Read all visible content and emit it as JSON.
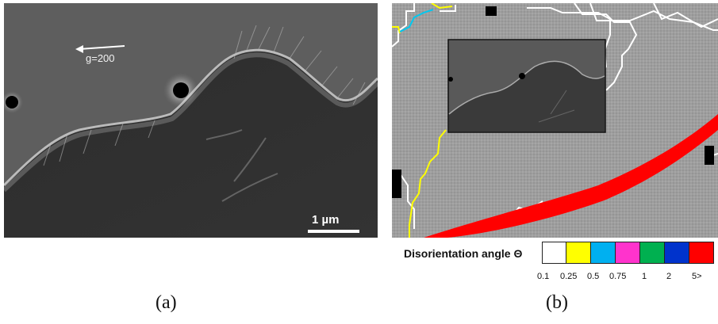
{
  "panel_a": {
    "g_vector_label": "g=200",
    "scale_bar_label": "1 µm"
  },
  "panel_b": {
    "legend_title": "Disorientation angle Θ",
    "legend_colors": [
      "#ffffff",
      "#ffff00",
      "#00b0f0",
      "#ff33cc",
      "#00b050",
      "#0033cc",
      "#ff0000"
    ],
    "legend_ticks": [
      "0.1",
      "0.25",
      "0.5",
      "0.75",
      "1",
      "2",
      "5>"
    ]
  },
  "captions": {
    "a": "(a)",
    "b": "(b)"
  }
}
